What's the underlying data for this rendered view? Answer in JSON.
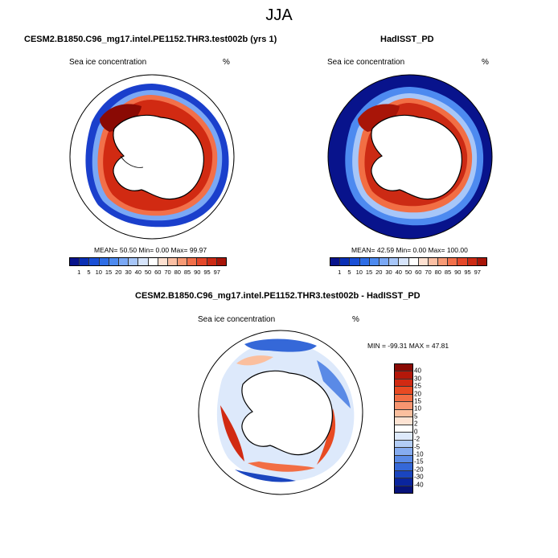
{
  "season": "JJA",
  "panels": {
    "model": {
      "title": "CESM2.B1850.C96_mg17.intel.PE1152.THR3.test002b (yrs 1)",
      "subtitle_left": "Sea ice concentration",
      "subtitle_right": "%",
      "stats": "MEAN=  50.50  Min=   0.00  Max=  99.97"
    },
    "obs": {
      "title": "HadISST_PD",
      "subtitle_left": "Sea ice concentration",
      "subtitle_right": "%",
      "stats": "MEAN=  42.59  Min=   0.00  Max= 100.00"
    },
    "diff": {
      "title": "CESM2.B1850.C96_mg17.intel.PE1152.THR3.test002b - HadISST_PD",
      "subtitle_left": "Sea ice concentration",
      "subtitle_right": "%",
      "stats": "MIN = -99.31  MAX =  47.81"
    }
  },
  "colorbars": {
    "concentration": {
      "labels": [
        "1",
        "5",
        "10",
        "15",
        "20",
        "30",
        "40",
        "50",
        "60",
        "70",
        "80",
        "85",
        "90",
        "95",
        "97"
      ],
      "colors": [
        "#08138c",
        "#0a2fb5",
        "#1a4fd6",
        "#2e6de6",
        "#4d8af0",
        "#7aa8f5",
        "#a7c6f8",
        "#d6e4fb",
        "#ffffff",
        "#fde0d0",
        "#fbbfa3",
        "#f79a75",
        "#f2704a",
        "#e5482a",
        "#cc2a14",
        "#a81508"
      ]
    },
    "difference": {
      "labels": [
        "40",
        "30",
        "25",
        "20",
        "15",
        "10",
        "5",
        "2",
        "0",
        "-2",
        "-5",
        "-10",
        "-15",
        "-20",
        "-30",
        "-40"
      ],
      "colors": [
        "#8a0a04",
        "#b4180a",
        "#d12a12",
        "#e84a22",
        "#f26e44",
        "#f79570",
        "#fbbf9e",
        "#fde3d3",
        "#ffffff",
        "#dde9fb",
        "#b3cdf6",
        "#86acf0",
        "#5a8ae6",
        "#3568d8",
        "#1a45bf",
        "#0a259e",
        "#07137a"
      ]
    }
  }
}
